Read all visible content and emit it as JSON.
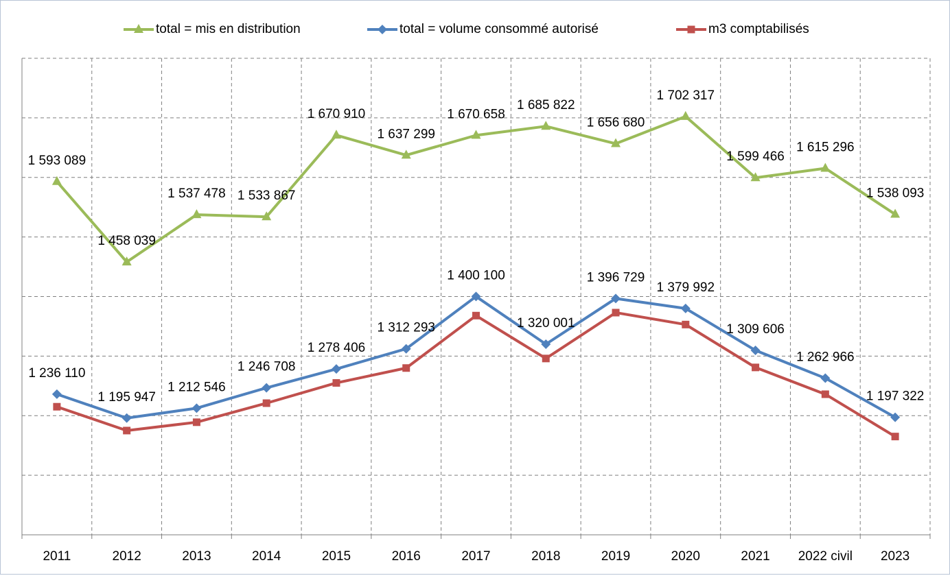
{
  "chart_data": {
    "type": "line",
    "categories": [
      "2011",
      "2012",
      "2013",
      "2014",
      "2015",
      "2016",
      "2017",
      "2018",
      "2019",
      "2020",
      "2021",
      "2022 civil",
      "2023"
    ],
    "series": [
      {
        "name": "total = mis en distribution",
        "color": "#9bbb59",
        "marker": "triangle",
        "values": [
          1593089,
          1458039,
          1537478,
          1533867,
          1670910,
          1637299,
          1670658,
          1685822,
          1656680,
          1702317,
          1599466,
          1615296,
          1538093
        ],
        "value_labels": [
          "1 593 089",
          "1 458 039",
          "1 537 478",
          "1 533 867",
          "1 670 910",
          "1 637 299",
          "1 670 658",
          "1 685 822",
          "1 656 680",
          "1 702 317",
          "1 599 466",
          "1 615 296",
          "1 538 093"
        ]
      },
      {
        "name": "total = volume consommé autorisé",
        "color": "#4f81bd",
        "marker": "diamond",
        "values": [
          1236110,
          1195947,
          1212546,
          1246708,
          1278406,
          1312293,
          1400100,
          1320001,
          1396729,
          1379992,
          1309606,
          1262966,
          1197322
        ],
        "value_labels": [
          "1 236 110",
          "1 195 947",
          "1 212 546",
          "1 246 708",
          "1 278 406",
          "1 312 293",
          "1 400 100",
          "1 320 001",
          "1 396 729",
          "1 379 992",
          "1 309 606",
          "1 262 966",
          "1 197 322"
        ]
      },
      {
        "name": "m3 comptabilisés",
        "color": "#c0504d",
        "marker": "square",
        "values": [
          1215000,
          1175000,
          1189000,
          1221000,
          1255000,
          1280000,
          1368000,
          1296000,
          1373000,
          1353000,
          1281000,
          1236000,
          1165000
        ]
      }
    ],
    "ylim": [
      1000000,
      1800000
    ],
    "yticks": [
      1000000,
      1100000,
      1200000,
      1300000,
      1400000,
      1500000,
      1600000,
      1700000,
      1800000
    ],
    "grid": true
  }
}
